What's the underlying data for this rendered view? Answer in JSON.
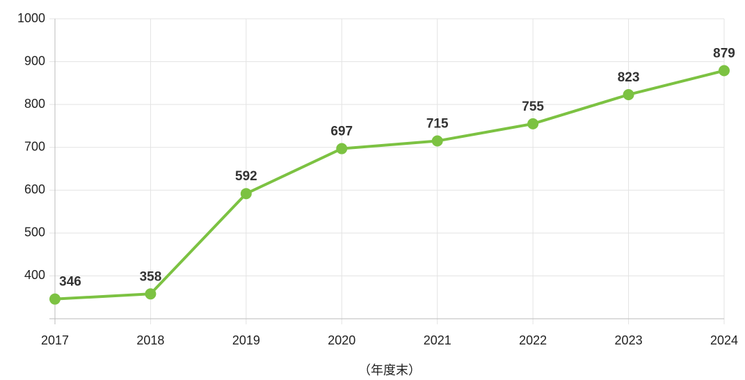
{
  "chart_data": {
    "type": "line",
    "x_label": "（年度末）",
    "categories": [
      "2017",
      "2018",
      "2019",
      "2020",
      "2021",
      "2022",
      "2023",
      "2024"
    ],
    "series": [
      {
        "name": "value",
        "color": "#7cc242",
        "values": [
          346,
          358,
          592,
          697,
          715,
          755,
          823,
          879
        ]
      }
    ],
    "ylim": [
      300,
      1000
    ],
    "yticks": [
      400,
      500,
      600,
      700,
      800,
      900,
      1000
    ],
    "grid": true,
    "data_labels": true
  }
}
